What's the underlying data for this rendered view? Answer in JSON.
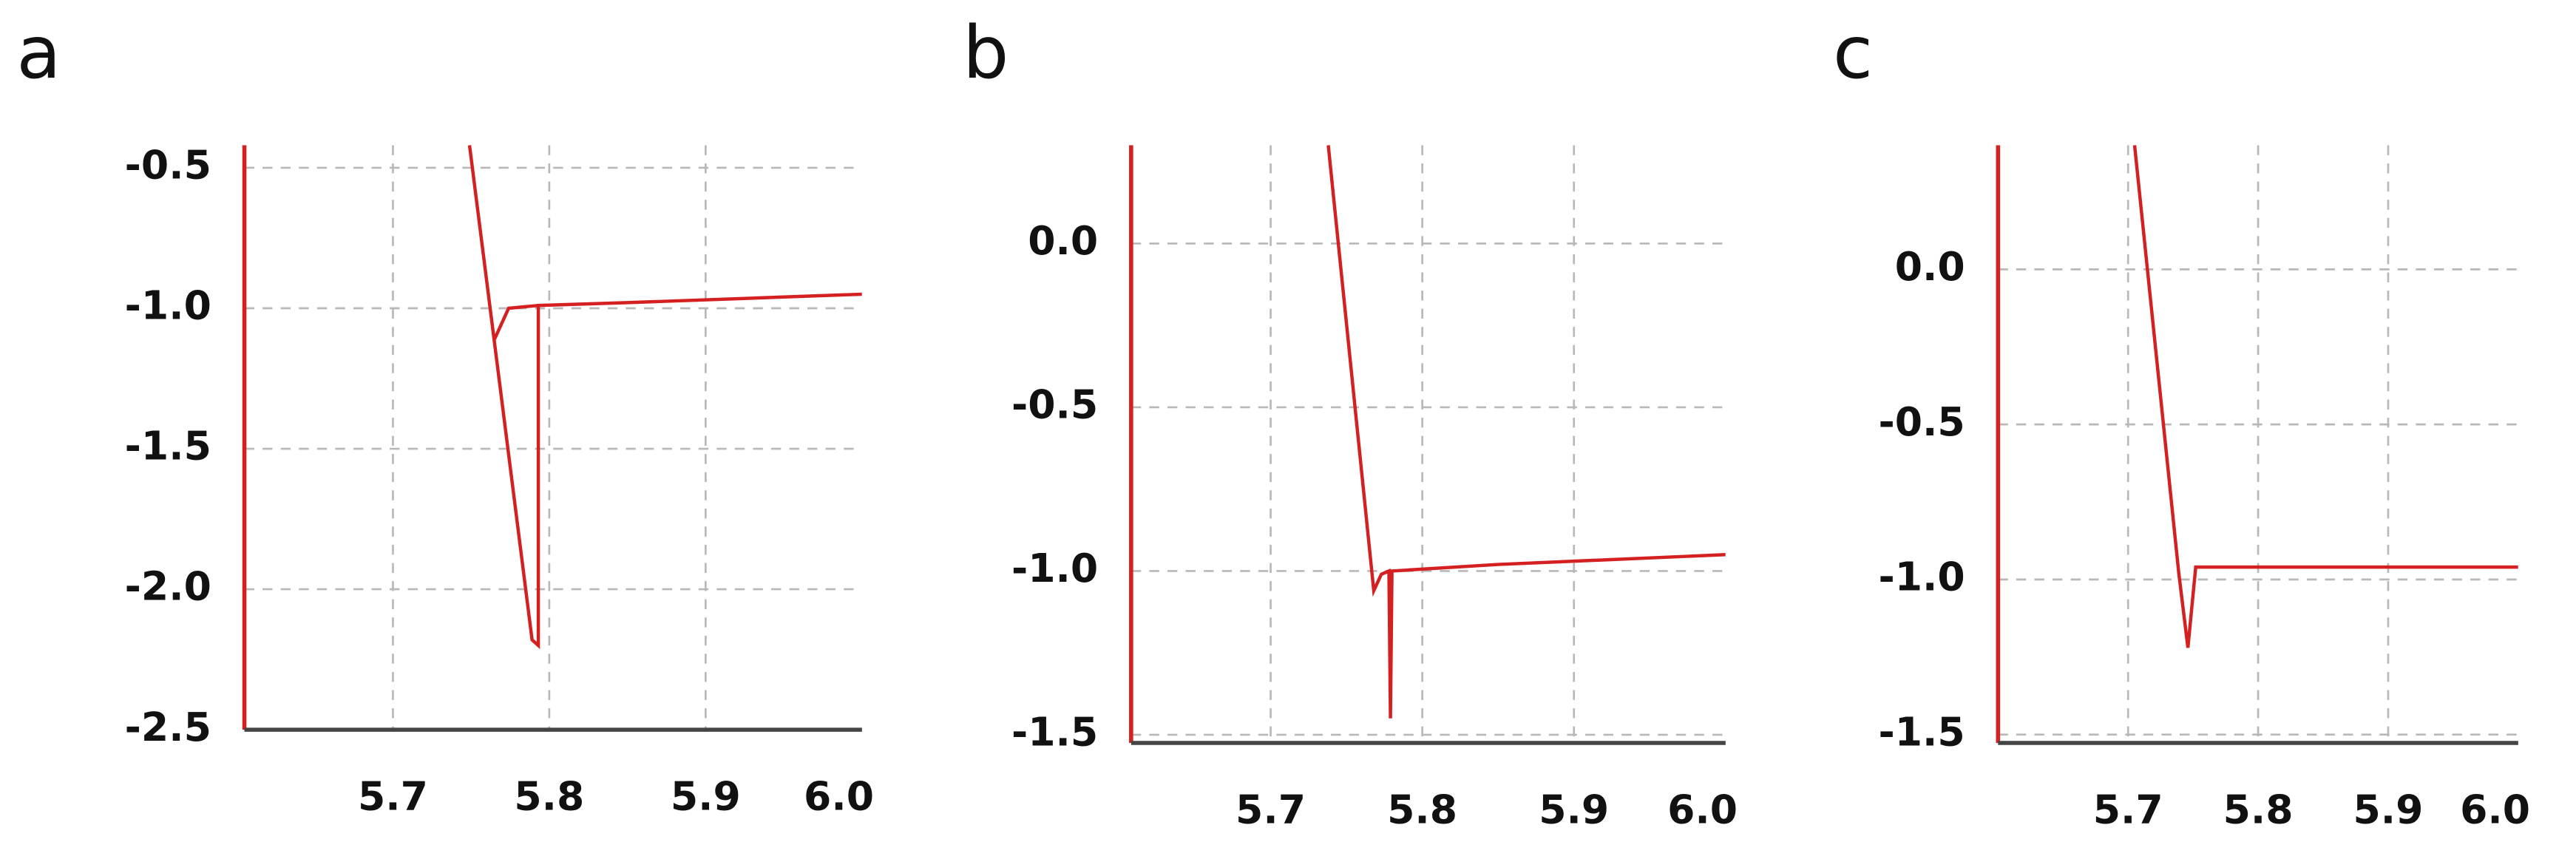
{
  "chart_data": [
    {
      "type": "line",
      "title": "a",
      "x": [
        5.749,
        5.789,
        5.793,
        5.793,
        5.85,
        5.95,
        6.0,
        5.79,
        5.765,
        5.774,
        5.793
      ],
      "series": [
        {
          "color": "#d42020",
          "values": [
            -0.42,
            -2.18,
            -2.2,
            -0.99,
            -0.98,
            -0.96,
            -0.95,
            null,
            -1.11,
            -1.0,
            -0.99
          ]
        }
      ],
      "xlim": [
        5.605,
        6.0
      ],
      "ylim": [
        -2.5,
        -0.42
      ],
      "xticks": [
        5.7,
        5.8,
        5.9,
        {
          "value": 6.0,
          "label": "6.0"
        }
      ],
      "yticks": [
        -0.5,
        {
          "value": -1.0,
          "label": "-1.0"
        },
        -1.5,
        {
          "value": -2.0,
          "label": "-2.0"
        },
        -2.5
      ],
      "grid": true
    },
    {
      "type": "line",
      "title": "b",
      "x": [
        5.738,
        5.768,
        5.773,
        5.778,
        5.779,
        5.78,
        5.85,
        6.0
      ],
      "series": [
        {
          "color": "#d42020",
          "values": [
            0.3,
            -1.06,
            -1.01,
            -1.0,
            -1.45,
            -1.0,
            -0.98,
            -0.95
          ]
        }
      ],
      "xlim": [
        5.608,
        6.0
      ],
      "ylim": [
        -1.525,
        0.3
      ],
      "xticks": [
        5.7,
        5.8,
        5.9,
        {
          "value": 6.0,
          "label": "6.0"
        }
      ],
      "yticks": [
        {
          "value": 0.0,
          "label": "0.0"
        },
        -0.5,
        {
          "value": -1.0,
          "label": "-1.0"
        },
        -1.5
      ],
      "grid": true
    },
    {
      "type": "line",
      "title": "c",
      "x": [
        5.705,
        5.739,
        5.746,
        5.752,
        6.0
      ],
      "series": [
        {
          "color": "#d42020",
          "values": [
            0.4,
            -0.98,
            -1.22,
            -0.96,
            -0.96
          ]
        }
      ],
      "xlim": [
        5.6,
        6.0
      ],
      "ylim": [
        -1.527,
        0.4
      ],
      "xticks": [
        5.7,
        5.8,
        5.9,
        {
          "value": 6.0,
          "label": "6.0"
        }
      ],
      "yticks": [
        {
          "value": 0.0,
          "label": "0.0"
        },
        -0.5,
        {
          "value": -1.0,
          "label": "-1.0"
        },
        -1.5
      ],
      "grid": true
    }
  ]
}
